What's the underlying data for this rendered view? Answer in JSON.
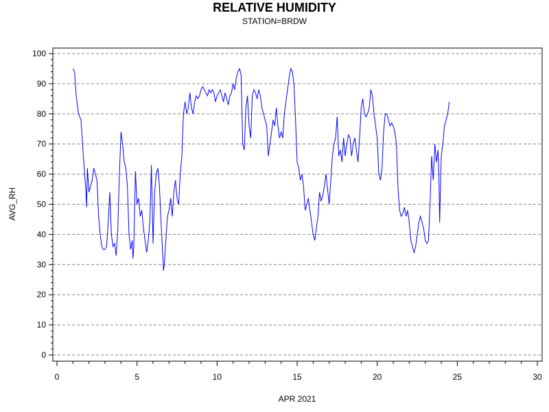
{
  "chart_data": {
    "type": "line",
    "title": "RELATIVE HUMIDITY",
    "subtitle": "STATION=BRDW",
    "xlabel": "APR 2021",
    "ylabel": "AVG_RH",
    "xlim": [
      0,
      30
    ],
    "ylim": [
      0,
      100
    ],
    "xticks": [
      0,
      5,
      10,
      15,
      20,
      25,
      30
    ],
    "yticks": [
      0,
      10,
      20,
      30,
      40,
      50,
      60,
      70,
      80,
      90,
      100
    ],
    "grid": {
      "y": true,
      "style": "dashed",
      "x": false
    },
    "series": [
      {
        "color": "#0000ff",
        "points": [
          [
            1.0,
            95
          ],
          [
            1.1,
            94
          ],
          [
            1.2,
            86
          ],
          [
            1.35,
            80
          ],
          [
            1.5,
            78
          ],
          [
            1.6,
            70
          ],
          [
            1.7,
            62
          ],
          [
            1.8,
            55
          ],
          [
            1.85,
            49
          ],
          [
            1.9,
            62
          ],
          [
            2.0,
            54
          ],
          [
            2.1,
            56
          ],
          [
            2.2,
            58
          ],
          [
            2.3,
            62
          ],
          [
            2.4,
            60
          ],
          [
            2.5,
            58
          ],
          [
            2.6,
            46
          ],
          [
            2.7,
            40
          ],
          [
            2.8,
            36
          ],
          [
            2.9,
            35
          ],
          [
            3.0,
            35
          ],
          [
            3.1,
            36
          ],
          [
            3.2,
            44
          ],
          [
            3.3,
            54
          ],
          [
            3.4,
            40
          ],
          [
            3.5,
            36
          ],
          [
            3.6,
            37
          ],
          [
            3.7,
            33
          ],
          [
            3.8,
            42
          ],
          [
            3.9,
            60
          ],
          [
            4.0,
            74
          ],
          [
            4.1,
            70
          ],
          [
            4.2,
            64
          ],
          [
            4.3,
            62
          ],
          [
            4.4,
            56
          ],
          [
            4.5,
            40
          ],
          [
            4.6,
            35
          ],
          [
            4.7,
            38
          ],
          [
            4.75,
            32
          ],
          [
            4.8,
            36
          ],
          [
            4.9,
            61
          ],
          [
            5.0,
            50
          ],
          [
            5.1,
            52
          ],
          [
            5.2,
            46
          ],
          [
            5.3,
            48
          ],
          [
            5.4,
            42
          ],
          [
            5.5,
            38
          ],
          [
            5.6,
            34
          ],
          [
            5.7,
            38
          ],
          [
            5.8,
            44
          ],
          [
            5.9,
            63
          ],
          [
            6.0,
            37
          ],
          [
            6.1,
            54
          ],
          [
            6.2,
            60
          ],
          [
            6.3,
            62
          ],
          [
            6.4,
            56
          ],
          [
            6.5,
            44
          ],
          [
            6.6,
            34
          ],
          [
            6.65,
            28
          ],
          [
            6.7,
            30
          ],
          [
            6.8,
            38
          ],
          [
            6.9,
            46
          ],
          [
            7.0,
            48
          ],
          [
            7.1,
            52
          ],
          [
            7.2,
            46
          ],
          [
            7.3,
            54
          ],
          [
            7.4,
            58
          ],
          [
            7.5,
            52
          ],
          [
            7.6,
            50
          ],
          [
            7.7,
            60
          ],
          [
            7.8,
            66
          ],
          [
            7.9,
            80
          ],
          [
            8.0,
            84
          ],
          [
            8.1,
            80
          ],
          [
            8.2,
            82
          ],
          [
            8.3,
            87
          ],
          [
            8.4,
            82
          ],
          [
            8.5,
            80
          ],
          [
            8.6,
            84
          ],
          [
            8.7,
            86
          ],
          [
            8.8,
            85
          ],
          [
            8.9,
            86
          ],
          [
            9.0,
            88
          ],
          [
            9.1,
            89
          ],
          [
            9.2,
            88
          ],
          [
            9.3,
            87
          ],
          [
            9.4,
            86
          ],
          [
            9.5,
            88
          ],
          [
            9.6,
            87
          ],
          [
            9.7,
            88
          ],
          [
            9.8,
            87
          ],
          [
            9.9,
            84
          ],
          [
            10.0,
            86
          ],
          [
            10.1,
            87
          ],
          [
            10.2,
            88
          ],
          [
            10.3,
            86
          ],
          [
            10.4,
            84
          ],
          [
            10.5,
            87
          ],
          [
            10.6,
            85
          ],
          [
            10.7,
            83
          ],
          [
            10.8,
            86
          ],
          [
            10.9,
            87
          ],
          [
            11.0,
            90
          ],
          [
            11.1,
            88
          ],
          [
            11.2,
            92
          ],
          [
            11.3,
            94
          ],
          [
            11.4,
            95
          ],
          [
            11.5,
            93
          ],
          [
            11.6,
            70
          ],
          [
            11.7,
            68
          ],
          [
            11.8,
            82
          ],
          [
            11.9,
            86
          ],
          [
            12.0,
            76
          ],
          [
            12.1,
            72
          ],
          [
            12.2,
            86
          ],
          [
            12.3,
            88
          ],
          [
            12.4,
            87
          ],
          [
            12.5,
            85
          ],
          [
            12.6,
            88
          ],
          [
            12.7,
            86
          ],
          [
            12.8,
            82
          ],
          [
            12.9,
            80
          ],
          [
            13.0,
            78
          ],
          [
            13.1,
            76
          ],
          [
            13.2,
            66
          ],
          [
            13.3,
            70
          ],
          [
            13.4,
            74
          ],
          [
            13.5,
            78
          ],
          [
            13.6,
            76
          ],
          [
            13.7,
            82
          ],
          [
            13.8,
            76
          ],
          [
            13.9,
            72
          ],
          [
            14.0,
            74
          ],
          [
            14.1,
            72
          ],
          [
            14.2,
            80
          ],
          [
            14.3,
            84
          ],
          [
            14.4,
            88
          ],
          [
            14.5,
            92
          ],
          [
            14.6,
            95
          ],
          [
            14.7,
            94
          ],
          [
            14.8,
            90
          ],
          [
            14.9,
            78
          ],
          [
            15.0,
            64
          ],
          [
            15.1,
            62
          ],
          [
            15.2,
            58
          ],
          [
            15.3,
            60
          ],
          [
            15.4,
            56
          ],
          [
            15.5,
            48
          ],
          [
            15.6,
            50
          ],
          [
            15.7,
            52
          ],
          [
            15.8,
            48
          ],
          [
            15.9,
            44
          ],
          [
            16.0,
            40
          ],
          [
            16.1,
            38
          ],
          [
            16.2,
            42
          ],
          [
            16.3,
            46
          ],
          [
            16.4,
            54
          ],
          [
            16.5,
            51
          ],
          [
            16.6,
            53
          ],
          [
            16.7,
            56
          ],
          [
            16.8,
            60
          ],
          [
            16.9,
            55
          ],
          [
            17.0,
            50
          ],
          [
            17.1,
            58
          ],
          [
            17.2,
            66
          ],
          [
            17.3,
            70
          ],
          [
            17.4,
            72
          ],
          [
            17.5,
            79
          ],
          [
            17.6,
            66
          ],
          [
            17.7,
            68
          ],
          [
            17.8,
            64
          ],
          [
            17.9,
            72
          ],
          [
            18.0,
            66
          ],
          [
            18.1,
            70
          ],
          [
            18.2,
            73
          ],
          [
            18.3,
            72
          ],
          [
            18.4,
            66
          ],
          [
            18.5,
            70
          ],
          [
            18.6,
            72
          ],
          [
            18.7,
            68
          ],
          [
            18.8,
            64
          ],
          [
            18.9,
            72
          ],
          [
            19.0,
            82
          ],
          [
            19.1,
            85
          ],
          [
            19.2,
            80
          ],
          [
            19.3,
            79
          ],
          [
            19.4,
            80
          ],
          [
            19.5,
            82
          ],
          [
            19.6,
            88
          ],
          [
            19.7,
            86
          ],
          [
            19.8,
            80
          ],
          [
            19.9,
            76
          ],
          [
            20.0,
            72
          ],
          [
            20.1,
            60
          ],
          [
            20.2,
            58
          ],
          [
            20.3,
            62
          ],
          [
            20.4,
            74
          ],
          [
            20.5,
            80
          ],
          [
            20.6,
            80
          ],
          [
            20.7,
            78
          ],
          [
            20.8,
            76
          ],
          [
            20.9,
            77
          ],
          [
            21.0,
            76
          ],
          [
            21.1,
            74
          ],
          [
            21.2,
            70
          ],
          [
            21.3,
            55
          ],
          [
            21.4,
            48
          ],
          [
            21.5,
            46
          ],
          [
            21.6,
            47
          ],
          [
            21.7,
            49
          ],
          [
            21.8,
            46
          ],
          [
            21.9,
            48
          ],
          [
            22.0,
            44
          ],
          [
            22.1,
            38
          ],
          [
            22.2,
            36
          ],
          [
            22.3,
            34
          ],
          [
            22.4,
            36
          ],
          [
            22.5,
            40
          ],
          [
            22.6,
            44
          ],
          [
            22.7,
            46
          ],
          [
            22.8,
            44
          ],
          [
            22.9,
            42
          ],
          [
            23.0,
            38
          ],
          [
            23.1,
            37
          ],
          [
            23.2,
            38
          ],
          [
            23.3,
            50
          ],
          [
            23.4,
            66
          ],
          [
            23.5,
            58
          ],
          [
            23.6,
            70
          ],
          [
            23.7,
            64
          ],
          [
            23.8,
            68
          ],
          [
            23.85,
            60
          ],
          [
            23.9,
            44
          ],
          [
            24.0,
            66
          ],
          [
            24.1,
            70
          ],
          [
            24.2,
            76
          ],
          [
            24.3,
            78
          ],
          [
            24.4,
            80
          ],
          [
            24.5,
            84
          ]
        ]
      }
    ]
  }
}
